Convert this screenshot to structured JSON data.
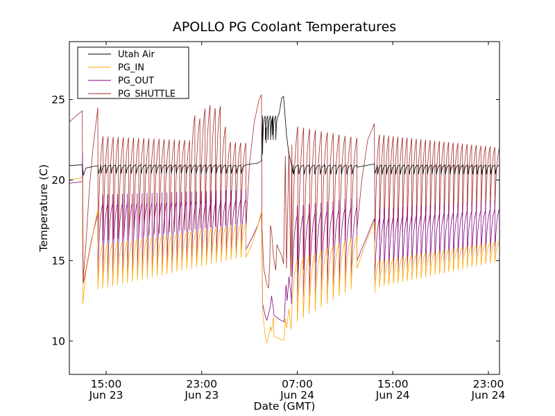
{
  "chart_data": {
    "type": "line",
    "title": "APOLLO PG Coolant Temperatures",
    "xlabel": "Date (GMT)",
    "ylabel": "Temperature (C)",
    "x_units": "hours since Jun 23 00:00 GMT",
    "xlim": [
      11.92,
      47.93
    ],
    "ylim": [
      7.93,
      28.6
    ],
    "grid": false,
    "legend_placement": "top-left",
    "x_ticks": [
      {
        "value": 15,
        "line1": "15:00",
        "line2": "Jun 23"
      },
      {
        "value": 23,
        "line1": "23:00",
        "line2": "Jun 23"
      },
      {
        "value": 31,
        "line1": "07:00",
        "line2": "Jun 24"
      },
      {
        "value": 39,
        "line1": "15:00",
        "line2": "Jun 24"
      },
      {
        "value": 47,
        "line1": "23:00",
        "line2": "Jun 24"
      }
    ],
    "y_ticks": [
      {
        "value": 10,
        "label": "10"
      },
      {
        "value": 15,
        "label": "15"
      },
      {
        "value": 20,
        "label": "20"
      },
      {
        "value": 25,
        "label": "25"
      }
    ],
    "series": [
      {
        "name": "Utah Air",
        "color": "#000000",
        "key_points": [
          [
            11.92,
            20.9
          ],
          [
            13.0,
            20.95
          ],
          [
            13.1,
            20.3
          ],
          [
            13.3,
            20.75
          ],
          [
            14.3,
            20.9
          ],
          [
            14.35,
            20.4
          ],
          [
            14.55,
            20.8
          ]
        ],
        "cycles": [
          {
            "start": 14.55,
            "end": 26.7,
            "period": 0.42,
            "peak": 20.95,
            "trough": 20.4
          },
          {
            "start": 28.1,
            "end": 29.4,
            "period": 0.22,
            "peak": 24.0,
            "trough": 22.5
          }
        ],
        "ramps": [
          {
            "points": [
              [
                26.7,
                20.95
              ],
              [
                27.7,
                21.05
              ],
              [
                28.0,
                21.2
              ],
              [
                28.1,
                21.6
              ],
              [
                28.4,
                22.3
              ],
              [
                28.9,
                22.8
              ],
              [
                29.2,
                23.5
              ],
              [
                29.5,
                24.2
              ],
              [
                29.7,
                25.1
              ],
              [
                29.85,
                25.2
              ],
              [
                30.1,
                22.8
              ],
              [
                30.3,
                21.6
              ],
              [
                30.5,
                21.0
              ],
              [
                30.65,
                20.4
              ]
            ]
          },
          {
            "points": [
              [
                36.0,
                20.8
              ],
              [
                37.45,
                21.0
              ],
              [
                37.5,
                20.4
              ],
              [
                37.7,
                20.9
              ]
            ]
          }
        ],
        "cycles_after": [
          {
            "start": 30.65,
            "end": 36.0,
            "period": 0.45,
            "peak": 20.95,
            "trough": 20.35
          },
          {
            "start": 37.7,
            "end": 47.93,
            "period": 0.38,
            "peak": 20.95,
            "trough": 20.35
          }
        ]
      },
      {
        "name": "PG_IN",
        "color": "#FFA500",
        "key_points": [
          [
            11.92,
            20.0
          ],
          [
            13.0,
            20.15
          ],
          [
            13.05,
            12.3
          ],
          [
            13.3,
            14.3
          ],
          [
            13.8,
            16.3
          ],
          [
            14.3,
            18.2
          ]
        ],
        "cycles": [
          {
            "start": 14.3,
            "end": 26.7,
            "period": 0.42,
            "peak_start": 16.0,
            "peak_end": 17.3,
            "trough_start": 13.2,
            "trough_end": 15.2
          }
        ],
        "ramps": [
          {
            "points": [
              [
                26.7,
                15.2
              ],
              [
                27.2,
                16.0
              ],
              [
                27.7,
                17.2
              ],
              [
                28.0,
                18.0
              ],
              [
                28.1,
                11.8
              ],
              [
                28.3,
                10.4
              ],
              [
                28.45,
                9.9
              ],
              [
                28.6,
                10.3
              ],
              [
                28.75,
                10.9
              ],
              [
                28.85,
                10.6
              ],
              [
                29.0,
                11.5
              ],
              [
                29.05,
                10.3
              ],
              [
                29.6,
                10.1
              ],
              [
                29.9,
                10.05
              ],
              [
                30.0,
                11.4
              ],
              [
                30.1,
                10.8
              ],
              [
                30.3,
                12.0
              ],
              [
                30.5,
                10.7
              ]
            ]
          },
          {
            "points": [
              [
                36.0,
                14.5
              ],
              [
                36.5,
                15.6
              ],
              [
                37.0,
                16.6
              ],
              [
                37.45,
                17.4
              ],
              [
                37.5,
                13.0
              ]
            ]
          }
        ],
        "cycles_after": [
          {
            "start": 30.5,
            "end": 36.0,
            "period": 0.5,
            "peak_start": 15.0,
            "peak_end": 16.5,
            "trough_start": 11.0,
            "trough_end": 13.2
          },
          {
            "start": 37.5,
            "end": 47.93,
            "period": 0.38,
            "peak_start": 15.0,
            "peak_end": 16.2,
            "trough_start": 13.3,
            "trough_end": 14.9
          }
        ]
      },
      {
        "name": "PG_OUT",
        "color": "#800080",
        "key_points": [
          [
            11.92,
            19.8
          ],
          [
            13.0,
            19.9
          ],
          [
            13.02,
            21.7
          ],
          [
            13.08,
            13.6
          ],
          [
            13.3,
            14.4
          ],
          [
            13.8,
            16.4
          ],
          [
            14.3,
            17.9
          ]
        ],
        "cycles": [
          {
            "start": 14.3,
            "end": 26.7,
            "period": 0.42,
            "peak_start": 18.5,
            "peak_end": 18.8,
            "trough_start": 14.0,
            "trough_end": 15.7,
            "spike": true
          }
        ],
        "ramps": [
          {
            "points": [
              [
                26.7,
                15.7
              ],
              [
                27.2,
                16.4
              ],
              [
                27.7,
                17.2
              ],
              [
                28.0,
                17.9
              ],
              [
                28.1,
                12.3
              ],
              [
                28.3,
                11.6
              ],
              [
                28.45,
                11.3
              ],
              [
                28.6,
                11.7
              ],
              [
                28.75,
                12.2
              ],
              [
                28.85,
                12.8
              ],
              [
                29.0,
                12.0
              ],
              [
                29.05,
                11.6
              ],
              [
                29.6,
                11.3
              ],
              [
                29.9,
                11.2
              ],
              [
                30.05,
                13.5
              ],
              [
                30.15,
                12.5
              ],
              [
                30.3,
                14.0
              ],
              [
                30.5,
                12.6
              ]
            ]
          },
          {
            "points": [
              [
                36.0,
                15.0
              ],
              [
                36.5,
                15.9
              ],
              [
                37.0,
                16.8
              ],
              [
                37.45,
                17.6
              ],
              [
                37.5,
                13.8
              ]
            ]
          }
        ],
        "cycles_after": [
          {
            "start": 30.5,
            "end": 36.0,
            "period": 0.5,
            "peak_start": 17.8,
            "peak_end": 18.3,
            "trough_start": 12.3,
            "trough_end": 14.0,
            "spike": true
          },
          {
            "start": 37.5,
            "end": 47.93,
            "period": 0.38,
            "peak_start": 17.6,
            "peak_end": 18.2,
            "trough_start": 14.0,
            "trough_end": 15.5,
            "spike": true
          }
        ]
      },
      {
        "name": "PG_SHUTTLE",
        "color": "#A52A2A",
        "key_points": [
          [
            11.92,
            23.6
          ],
          [
            12.5,
            24.0
          ],
          [
            13.0,
            24.3
          ],
          [
            13.05,
            13.6
          ],
          [
            13.3,
            16.0
          ],
          [
            13.6,
            19.5
          ],
          [
            13.9,
            22.0
          ],
          [
            14.3,
            24.5
          ],
          [
            14.32,
            16.3
          ]
        ],
        "cycles": [
          {
            "start": 14.32,
            "end": 26.7,
            "period": 0.42,
            "peak_start": 22.7,
            "peak_end": 22.3,
            "peak_bump": [
              [
                22.0,
                24.0
              ],
              [
                24.0,
                25.0
              ],
              [
                25.0,
                22.0
              ]
            ],
            "trough_start": 16.2,
            "trough_end": 17.3
          }
        ],
        "ramps": [
          {
            "points": [
              [
                26.7,
                17.0
              ],
              [
                27.0,
                21.0
              ],
              [
                27.4,
                23.6
              ],
              [
                27.8,
                25.0
              ],
              [
                28.0,
                25.3
              ],
              [
                28.05,
                17.0
              ],
              [
                28.2,
                14.5
              ],
              [
                28.45,
                13.5
              ],
              [
                28.6,
                13.3
              ],
              [
                28.7,
                15.0
              ],
              [
                28.75,
                17.2
              ],
              [
                28.85,
                16.8
              ],
              [
                29.0,
                15.3
              ],
              [
                29.2,
                14.4
              ],
              [
                29.3,
                16.0
              ],
              [
                29.5,
                15.6
              ],
              [
                29.7,
                15.3
              ],
              [
                29.85,
                14.8
              ],
              [
                30.0,
                21.5
              ],
              [
                30.1,
                14.5
              ],
              [
                30.3,
                21.8
              ],
              [
                30.45,
                14.0
              ],
              [
                30.55,
                22.2
              ]
            ]
          },
          {
            "points": [
              [
                36.0,
                17.0
              ],
              [
                36.4,
                20.0
              ],
              [
                36.9,
                22.5
              ],
              [
                37.45,
                23.5
              ],
              [
                37.5,
                16.2
              ]
            ]
          }
        ],
        "cycles_after": [
          {
            "start": 30.55,
            "end": 36.0,
            "period": 0.5,
            "peak_start": 23.3,
            "peak_end": 22.6,
            "trough_start": 14.0,
            "trough_end": 16.2
          },
          {
            "start": 37.5,
            "end": 47.93,
            "period": 0.38,
            "peak_start": 22.8,
            "peak_end": 22.0,
            "trough_start": 16.2,
            "trough_end": 18.3
          }
        ]
      }
    ]
  }
}
